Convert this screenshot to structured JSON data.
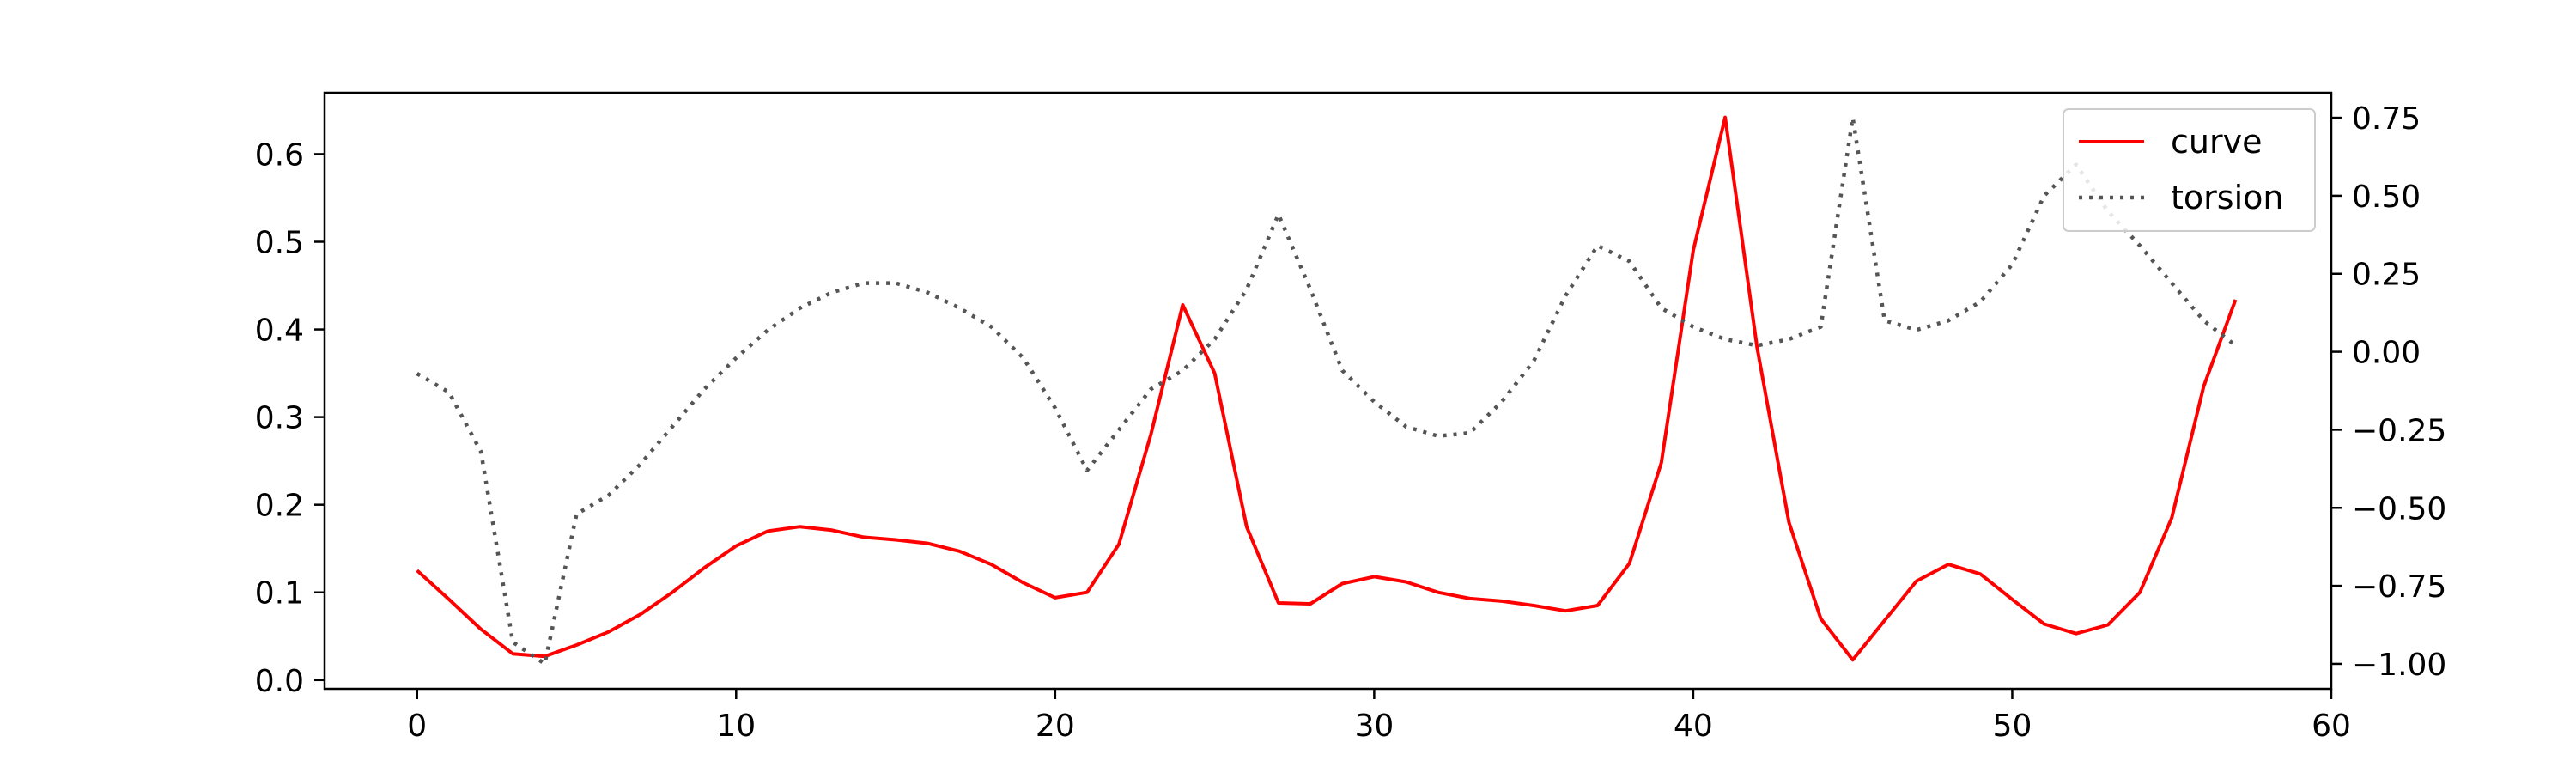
{
  "chart_data": {
    "type": "line",
    "title": "",
    "xlabel": "",
    "ylabel": "",
    "ylabel_right": "",
    "xlim": [
      -2.9,
      60
    ],
    "ylim": [
      -0.01,
      0.67
    ],
    "ylim_right": [
      -1.08,
      0.83
    ],
    "grid": false,
    "legend_position": "top-right",
    "x_ticks": [
      0,
      10,
      20,
      30,
      40,
      50,
      60
    ],
    "y_ticks": [
      0.0,
      0.1,
      0.2,
      0.3,
      0.4,
      0.5,
      0.6
    ],
    "y_ticks_right": [
      0.75,
      0.5,
      0.25,
      0.0,
      -0.25,
      -0.5,
      -0.75,
      -1.0
    ],
    "x_tick_labels": [
      "0",
      "10",
      "20",
      "30",
      "40",
      "50",
      "60"
    ],
    "y_tick_labels": [
      "0.0",
      "0.1",
      "0.2",
      "0.3",
      "0.4",
      "0.5",
      "0.6"
    ],
    "y_tick_labels_right": [
      "0.75",
      "0.50",
      "0.25",
      "0.00",
      "−0.25",
      "−0.50",
      "−0.75",
      "−1.00"
    ],
    "series": [
      {
        "name": "curve",
        "axis": "left",
        "color": "#ff0000",
        "style": "solid",
        "x": [
          0,
          1,
          2,
          3,
          4,
          5,
          6,
          7,
          8,
          9,
          10,
          11,
          12,
          13,
          14,
          15,
          16,
          17,
          18,
          19,
          20,
          21,
          22,
          23,
          24,
          25,
          26,
          27,
          28,
          29,
          30,
          31,
          32,
          33,
          34,
          35,
          36,
          37,
          38,
          39,
          40,
          41,
          42,
          43,
          44,
          45,
          46,
          47,
          48,
          49,
          50,
          51,
          52,
          53,
          54,
          55,
          56,
          57
        ],
        "values": [
          0.125,
          0.092,
          0.058,
          0.03,
          0.027,
          0.04,
          0.055,
          0.075,
          0.1,
          0.128,
          0.153,
          0.17,
          0.175,
          0.171,
          0.163,
          0.16,
          0.156,
          0.147,
          0.132,
          0.111,
          0.094,
          0.1,
          0.155,
          0.28,
          0.428,
          0.35,
          0.175,
          0.088,
          0.087,
          0.11,
          0.118,
          0.112,
          0.1,
          0.093,
          0.09,
          0.085,
          0.079,
          0.085,
          0.133,
          0.248,
          0.49,
          0.642,
          0.38,
          0.18,
          0.07,
          0.023,
          0.068,
          0.113,
          0.132,
          0.121,
          0.092,
          0.064,
          0.053,
          0.063,
          0.1,
          0.185,
          0.335,
          0.434
        ]
      },
      {
        "name": "torsion",
        "axis": "right",
        "color": "#555555",
        "style": "dotted",
        "x": [
          0,
          1,
          2,
          3,
          4,
          5,
          6,
          7,
          8,
          9,
          10,
          11,
          12,
          13,
          14,
          15,
          16,
          17,
          18,
          19,
          20,
          21,
          22,
          23,
          24,
          25,
          26,
          27,
          28,
          29,
          30,
          31,
          32,
          33,
          34,
          35,
          36,
          37,
          38,
          39,
          40,
          41,
          42,
          43,
          44,
          45,
          46,
          47,
          48,
          49,
          50,
          51,
          52,
          53,
          54,
          55,
          56,
          57
        ],
        "values": [
          -0.07,
          -0.13,
          -0.32,
          -0.93,
          -1.0,
          -0.52,
          -0.46,
          -0.36,
          -0.24,
          -0.12,
          -0.02,
          0.07,
          0.14,
          0.19,
          0.22,
          0.22,
          0.19,
          0.14,
          0.08,
          -0.02,
          -0.18,
          -0.38,
          -0.25,
          -0.12,
          -0.06,
          0.04,
          0.2,
          0.44,
          0.2,
          -0.06,
          -0.16,
          -0.24,
          -0.27,
          -0.26,
          -0.16,
          -0.03,
          0.18,
          0.34,
          0.29,
          0.14,
          0.08,
          0.04,
          0.02,
          0.04,
          0.08,
          0.75,
          0.1,
          0.07,
          0.1,
          0.16,
          0.28,
          0.5,
          0.6,
          0.45,
          0.34,
          0.22,
          0.1,
          0.02
        ]
      }
    ]
  }
}
